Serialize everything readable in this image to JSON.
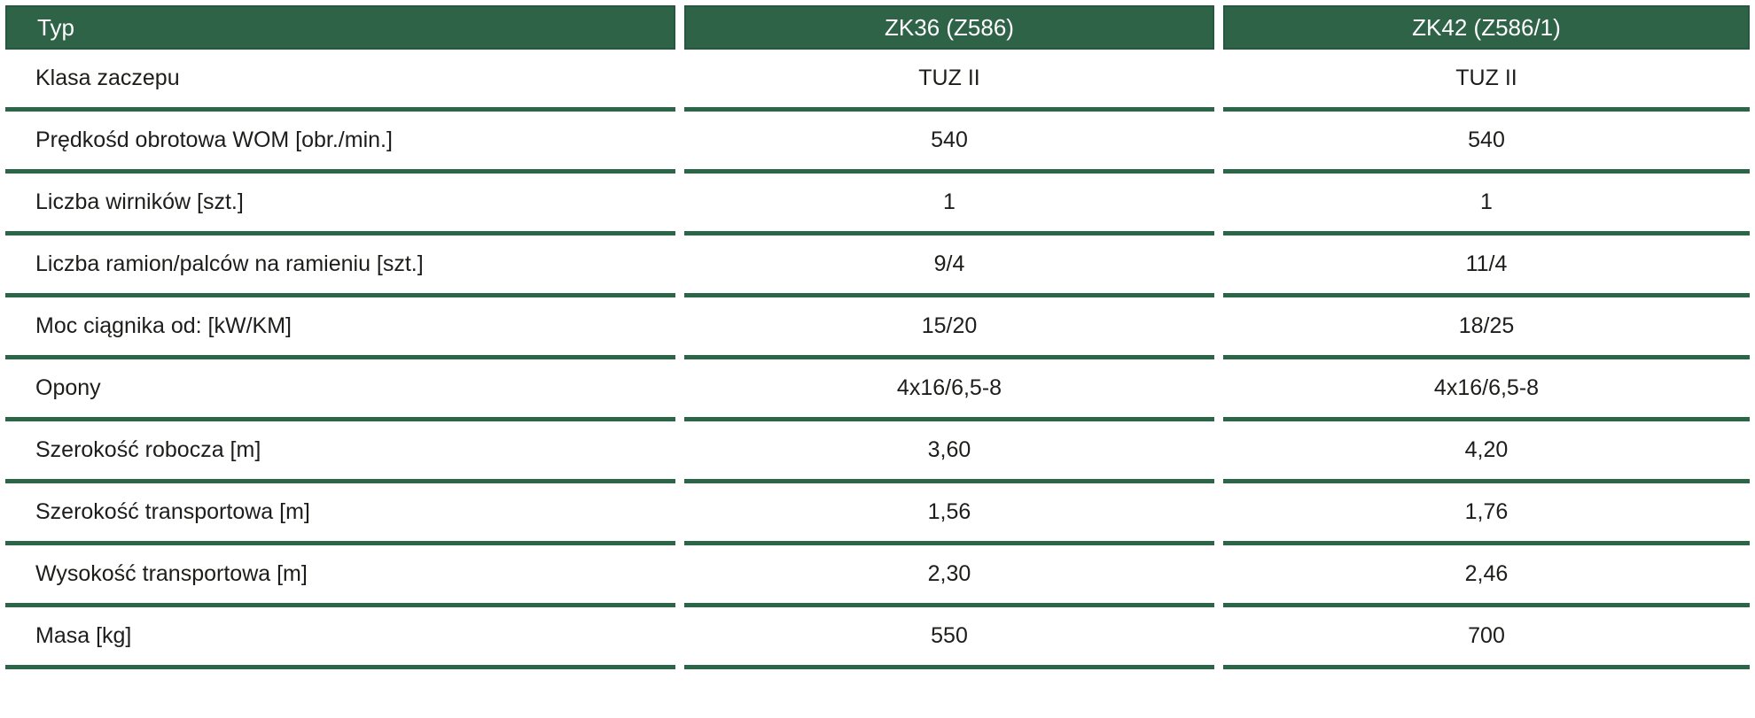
{
  "table": {
    "header": {
      "col_typ": "Typ",
      "col_zk36": "ZK36 (Z586)",
      "col_zk42": "ZK42 (Z586/1)"
    },
    "rows": [
      {
        "label": "Klasa zaczepu",
        "zk36": "TUZ II",
        "zk42": "TUZ II"
      },
      {
        "label": "Prędkośd obrotowa WOM [obr./min.]",
        "zk36": "540",
        "zk42": "540"
      },
      {
        "label": "Liczba wirników [szt.]",
        "zk36": "1",
        "zk42": "1"
      },
      {
        "label": "Liczba ramion/palców na ramieniu [szt.]",
        "zk36": "9/4",
        "zk42": "11/4"
      },
      {
        "label": "Moc ciągnika od: [kW/KM]",
        "zk36": "15/20",
        "zk42": "18/25"
      },
      {
        "label": "Opony",
        "zk36": "4x16/6,5-8",
        "zk42": "4x16/6,5-8"
      },
      {
        "label": "Szerokość robocza [m]",
        "zk36": "3,60",
        "zk42": "4,20"
      },
      {
        "label": "Szerokość transportowa [m]",
        "zk36": "1,56",
        "zk42": "1,76"
      },
      {
        "label": "Wysokość transportowa [m]",
        "zk36": "2,30",
        "zk42": "2,46"
      },
      {
        "label": "Masa [kg]",
        "zk36": "550",
        "zk42": "700"
      }
    ],
    "colors": {
      "header_bg": "#2e6348",
      "header_border": "#265741",
      "header_text": "#ffffff",
      "separator": "#2c6649",
      "body_text": "#1d1d1b"
    }
  }
}
